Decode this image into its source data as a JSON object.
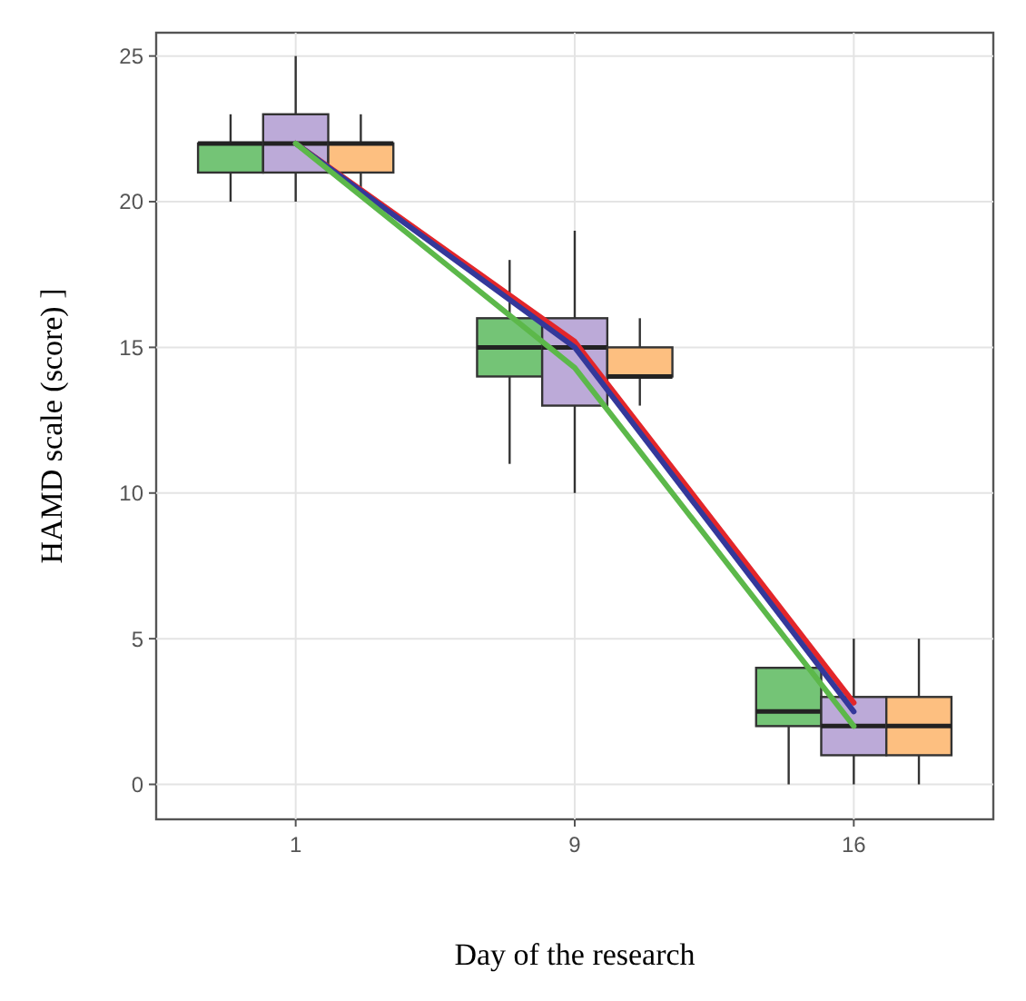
{
  "chart_data": {
    "type": "box",
    "xlabel": "Day of the research",
    "ylabel": "HAMD scale (score) ]",
    "categories": [
      "1",
      "9",
      "16"
    ],
    "ylim": [
      -1.2,
      25.8
    ],
    "yticks": [
      0,
      5,
      10,
      15,
      20,
      25
    ],
    "grid": true,
    "series": [
      {
        "color": "#74c476",
        "boxes": [
          {
            "low": 20,
            "q1": 21,
            "median": 22,
            "q3": 22,
            "high": 23
          },
          {
            "low": 11,
            "q1": 14,
            "median": 15,
            "q3": 16,
            "high": 18
          },
          {
            "low": 0,
            "q1": 2,
            "median": 2.5,
            "q3": 4,
            "high": 4
          }
        ]
      },
      {
        "color": "#bcaad8",
        "boxes": [
          {
            "low": 20,
            "q1": 21,
            "median": 22,
            "q3": 23,
            "high": 25
          },
          {
            "low": 10,
            "q1": 13,
            "median": 15,
            "q3": 16,
            "high": 19
          },
          {
            "low": 0,
            "q1": 1,
            "median": 2,
            "q3": 3,
            "high": 5
          }
        ]
      },
      {
        "color": "#fdbf80",
        "boxes": [
          {
            "low": 20.5,
            "q1": 21,
            "median": 22,
            "q3": 22,
            "high": 23
          },
          {
            "low": 13,
            "q1": 14,
            "median": 14,
            "q3": 15,
            "high": 16
          },
          {
            "low": 0,
            "q1": 1,
            "median": 2,
            "q3": 3,
            "high": 5
          }
        ]
      },
      {
        "type": "line",
        "color": "#e3262a",
        "values": [
          22,
          15.2,
          2.8
        ]
      },
      {
        "type": "line",
        "color": "#34389a",
        "values": [
          22,
          15,
          2.5
        ]
      },
      {
        "type": "line",
        "color": "#5cb84a",
        "values": [
          22,
          14.3,
          2
        ]
      }
    ]
  }
}
